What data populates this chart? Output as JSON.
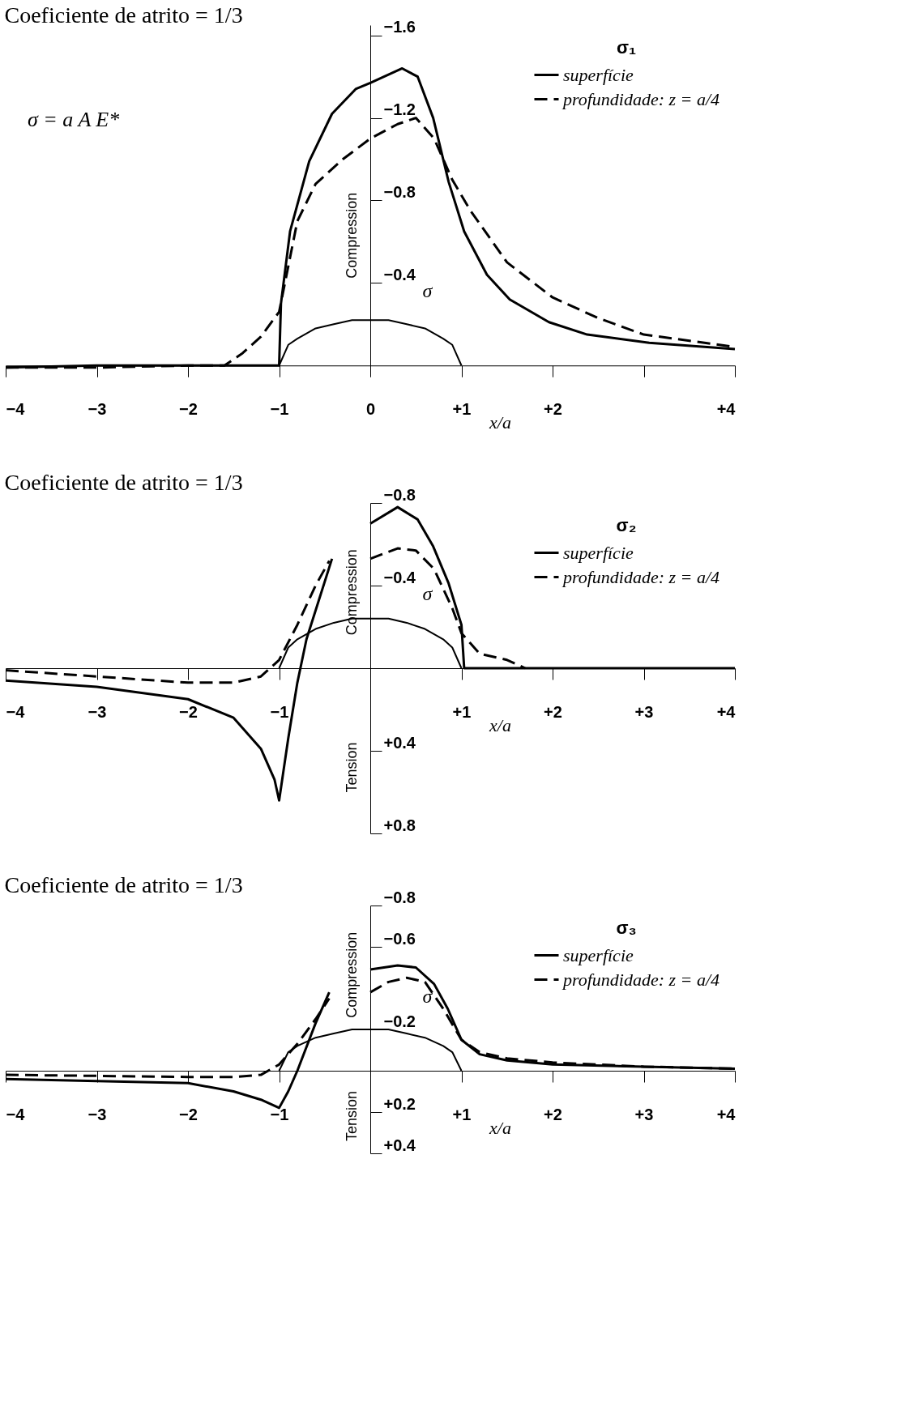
{
  "chart_data": [
    {
      "type": "line",
      "title": "Coeficiente de atrito = 1/3",
      "xlabel": "x/a",
      "ylabel": "σ",
      "legend_title": "σ₁",
      "legend": "top right",
      "grid": false,
      "annotations": [
        "σ = a A E*",
        "Compression"
      ],
      "xlim": [
        -4,
        4
      ],
      "ylim": [
        0.05,
        -1.65
      ],
      "xticks": [
        {
          "value": -4,
          "label": "−4"
        },
        {
          "value": -3,
          "label": "−3"
        },
        {
          "value": -2,
          "label": "−2"
        },
        {
          "value": -1,
          "label": "−1"
        },
        0,
        {
          "value": 1,
          "label": "+1"
        },
        {
          "value": 2,
          "label": "+2"
        },
        {
          "value": 3,
          "label": null
        },
        {
          "value": 4,
          "label": "+4"
        }
      ],
      "yticks": [
        {
          "value": -1.6,
          "label": "−1.6"
        },
        {
          "value": -1.2,
          "label": "−1.2"
        },
        {
          "value": -0.8,
          "label": "−0.8"
        },
        {
          "value": -0.4,
          "label": "−0.4"
        }
      ],
      "series": [
        {
          "name": "superfície",
          "color": "#000000",
          "line_style": "solid",
          "x": [
            -4,
            -3,
            -2,
            -1.5,
            -1,
            -0.98,
            -0.88,
            -0.67,
            -0.42,
            -0.16,
            0,
            0.35,
            0.52,
            0.69,
            0.86,
            1.03,
            1.28,
            1.53,
            1.96,
            2.38,
            3.06,
            4
          ],
          "values": [
            0.01,
            0.0,
            0.0,
            0.0,
            0.0,
            -0.3,
            -0.65,
            -0.99,
            -1.22,
            -1.34,
            -1.37,
            -1.44,
            -1.4,
            -1.2,
            -0.89,
            -0.65,
            -0.44,
            -0.32,
            -0.21,
            -0.15,
            -0.11,
            -0.08
          ]
        },
        {
          "name": "profundidade: z = a/4",
          "color": "#000000",
          "line_style": "dashed",
          "x": [
            -4,
            -3,
            -2,
            -1.6,
            -1.4,
            -1.2,
            -1,
            -0.8,
            -0.6,
            -0.3,
            0,
            0.3,
            0.5,
            0.7,
            0.9,
            1.1,
            1.5,
            2,
            2.5,
            3,
            4
          ],
          "values": [
            0.01,
            0.01,
            0.0,
            0.0,
            -0.06,
            -0.14,
            -0.26,
            -0.7,
            -0.88,
            -1.0,
            -1.1,
            -1.17,
            -1.2,
            -1.1,
            -0.9,
            -0.75,
            -0.5,
            -0.33,
            -0.23,
            -0.15,
            -0.09
          ]
        },
        {
          "color": "#000000",
          "line_style": "solid",
          "x": [
            -1,
            -0.9,
            -0.8,
            -0.6,
            -0.4,
            -0.2,
            0,
            0.2,
            0.4,
            0.6,
            0.8,
            0.9,
            1
          ],
          "values": [
            0,
            -0.1,
            -0.13,
            -0.18,
            -0.2,
            -0.22,
            -0.22,
            -0.22,
            -0.2,
            -0.18,
            -0.13,
            -0.1,
            0
          ]
        }
      ]
    },
    {
      "type": "line",
      "title": "Coeficiente de atrito = 1/3",
      "xlabel": "x/a",
      "ylabel": "σ",
      "legend_title": "σ₂",
      "legend": "top right",
      "grid": false,
      "annotations": [
        "Compression",
        "Tension"
      ],
      "xlim": [
        -4,
        4
      ],
      "ylim": [
        0.8,
        -0.8
      ],
      "xticks": [
        {
          "value": -4,
          "label": "−4"
        },
        {
          "value": -3,
          "label": "−3"
        },
        {
          "value": -2,
          "label": "−2"
        },
        {
          "value": -1,
          "label": "−1"
        },
        {
          "value": 1,
          "label": "+1"
        },
        {
          "value": 2,
          "label": "+2"
        },
        {
          "value": 3,
          "label": "+3"
        },
        {
          "value": 4,
          "label": "+4"
        }
      ],
      "yticks": [
        {
          "value": -0.8,
          "label": "−0.8"
        },
        {
          "value": -0.4,
          "label": "−0.4"
        },
        {
          "value": 0.4,
          "label": "+0.4"
        },
        {
          "value": 0.8,
          "label": "+0.8"
        }
      ],
      "series": [
        {
          "name": "superfície",
          "color": "#000000",
          "line_style": "solid",
          "x": [
            -4,
            -3,
            -2,
            -1.5,
            -1.2,
            -1.05,
            -1,
            -0.9,
            -0.8,
            -0.7,
            -0.42,
            -0.2,
            0,
            0.3,
            0.52,
            0.69,
            0.86,
            1.0,
            1.03,
            2,
            3,
            4
          ],
          "values": [
            0.06,
            0.09,
            0.15,
            0.24,
            0.39,
            0.54,
            0.64,
            0.34,
            0.07,
            -0.14,
            -0.53,
            null,
            -0.7,
            -0.78,
            -0.72,
            -0.59,
            -0.41,
            -0.21,
            0.0,
            0.0,
            0.0,
            0.0
          ]
        },
        {
          "name": "profundidade: z = a/4",
          "color": "#000000",
          "line_style": "dashed",
          "x": [
            -4,
            -3,
            -2,
            -1.5,
            -1.2,
            -1,
            -0.8,
            -0.6,
            -0.45,
            -0.2,
            0,
            0.3,
            0.5,
            0.7,
            0.9,
            1.0,
            1.2,
            1.5,
            1.7
          ],
          "values": [
            0.01,
            0.04,
            0.07,
            0.07,
            0.04,
            -0.04,
            -0.21,
            -0.4,
            -0.52,
            null,
            -0.53,
            -0.58,
            -0.57,
            -0.48,
            -0.29,
            -0.17,
            -0.07,
            -0.04,
            0.0
          ]
        },
        {
          "color": "#000000",
          "line_style": "solid",
          "x": [
            -1,
            -0.9,
            -0.8,
            -0.6,
            -0.4,
            -0.2,
            0,
            0.2,
            0.4,
            0.6,
            0.8,
            0.9,
            1
          ],
          "values": [
            0,
            -0.1,
            -0.14,
            -0.19,
            -0.22,
            -0.24,
            -0.24,
            -0.24,
            -0.22,
            -0.19,
            -0.14,
            -0.1,
            0
          ]
        }
      ]
    },
    {
      "type": "line",
      "title": "Coeficiente de atrito = 1/3",
      "xlabel": "x/a",
      "ylabel": "σ",
      "legend_title": "σ₃",
      "legend": "top right",
      "grid": false,
      "annotations": [
        "Compression",
        "Tension"
      ],
      "xlim": [
        -4,
        4
      ],
      "ylim": [
        0.4,
        -0.8
      ],
      "xticks": [
        {
          "value": -4,
          "label": "−4"
        },
        {
          "value": -3,
          "label": "−3"
        },
        {
          "value": -2,
          "label": "−2"
        },
        {
          "value": -1,
          "label": "−1"
        },
        {
          "value": 1,
          "label": "+1"
        },
        {
          "value": 2,
          "label": "+2"
        },
        {
          "value": 3,
          "label": "+3"
        },
        {
          "value": 4,
          "label": "+4"
        }
      ],
      "yticks": [
        {
          "value": -0.8,
          "label": "−0.8"
        },
        {
          "value": -0.6,
          "label": "−0.6"
        },
        {
          "value": -0.2,
          "label": "−0.2"
        },
        {
          "value": 0.2,
          "label": "+0.2"
        },
        {
          "value": 0.4,
          "label": "+0.4"
        }
      ],
      "series": [
        {
          "name": "superfície",
          "color": "#000000",
          "line_style": "solid",
          "x": [
            -4,
            -3,
            -2,
            -1.5,
            -1.2,
            -1,
            -0.9,
            -0.8,
            -0.6,
            -0.45,
            -0.2,
            0,
            0.3,
            0.5,
            0.7,
            0.85,
            1.0,
            1.2,
            1.5,
            2,
            3,
            4
          ],
          "values": [
            0.04,
            0.05,
            0.06,
            0.1,
            0.14,
            0.18,
            0.1,
            0.0,
            -0.23,
            -0.38,
            null,
            -0.49,
            -0.51,
            -0.5,
            -0.42,
            -0.3,
            -0.15,
            -0.08,
            -0.05,
            -0.03,
            -0.02,
            -0.01
          ]
        },
        {
          "name": "profundidade: z = a/4",
          "color": "#000000",
          "line_style": "dashed",
          "x": [
            -4,
            -2,
            -1.5,
            -1.2,
            -1,
            -0.8,
            -0.6,
            -0.45,
            -0.2,
            0,
            0.2,
            0.4,
            0.6,
            0.8,
            1.0,
            1.2,
            1.5,
            2,
            3,
            4
          ],
          "values": [
            0.02,
            0.03,
            0.03,
            0.02,
            -0.03,
            -0.13,
            -0.25,
            -0.35,
            null,
            -0.38,
            -0.43,
            -0.45,
            -0.43,
            -0.3,
            -0.15,
            -0.09,
            -0.06,
            -0.04,
            -0.02,
            -0.01
          ]
        },
        {
          "color": "#000000",
          "line_style": "solid",
          "x": [
            -1,
            -0.9,
            -0.8,
            -0.6,
            -0.4,
            -0.2,
            0,
            0.2,
            0.4,
            0.6,
            0.8,
            0.9,
            1
          ],
          "values": [
            0,
            -0.09,
            -0.12,
            -0.16,
            -0.18,
            -0.2,
            -0.2,
            -0.2,
            -0.18,
            -0.16,
            -0.12,
            -0.09,
            0
          ]
        }
      ]
    }
  ]
}
